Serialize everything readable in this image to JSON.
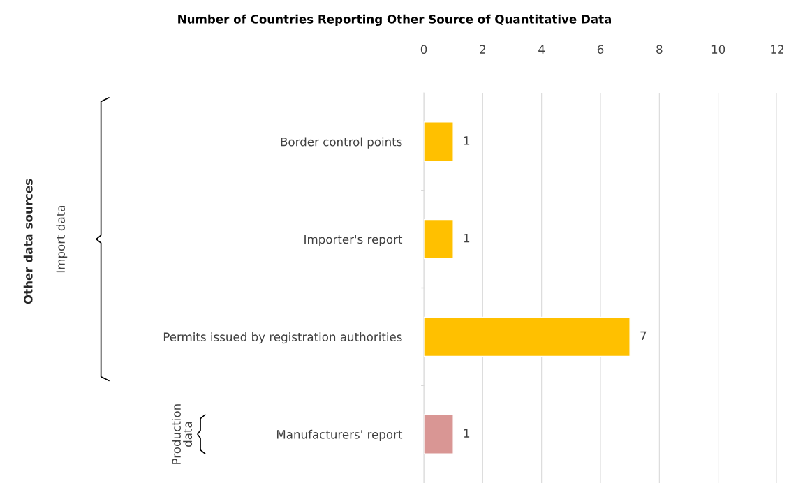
{
  "chart_data": {
    "type": "bar",
    "orientation": "horizontal",
    "title": "Number of Countries Reporting Other Source of Quantitative Data",
    "categories": [
      "Border control points",
      "Importer's report",
      "Permits issued by registration authorities",
      "Manufacturers' report"
    ],
    "values": [
      1,
      1,
      7,
      1
    ],
    "colors": [
      "#ffc000",
      "#ffc000",
      "#ffc000",
      "#d99694"
    ],
    "xlim": [
      0,
      12
    ],
    "xticks": [
      0,
      2,
      4,
      6,
      8,
      10,
      12
    ],
    "grid": "x",
    "data_labels": true,
    "annotations": [
      "Other data sources",
      "Import data",
      "Production\ndata"
    ]
  }
}
